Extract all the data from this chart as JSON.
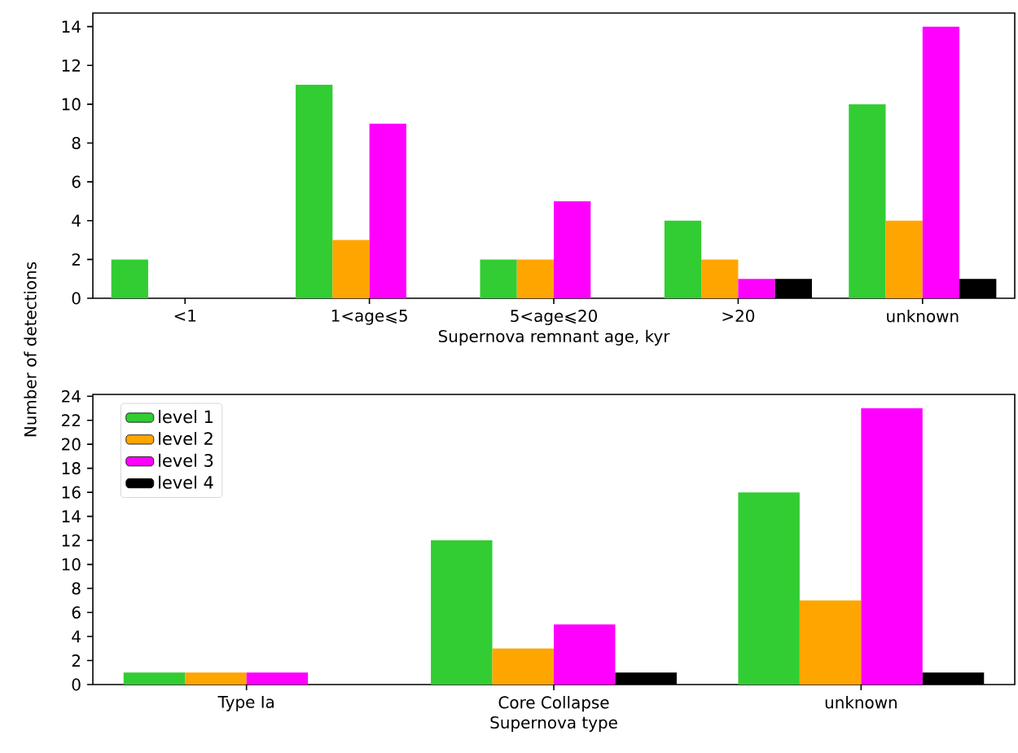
{
  "chart_data": [
    {
      "type": "bar",
      "xlabel": "Supernova remnant age, kyr",
      "ylabel": "Number of detections",
      "categories": [
        "<1",
        "1<age⩽5",
        "5<age⩽20",
        ">20",
        "unknown"
      ],
      "series": [
        {
          "color": "#32cd32",
          "values": [
            2,
            11,
            2,
            4,
            10
          ]
        },
        {
          "color": "#ffa500",
          "values": [
            0,
            3,
            2,
            2,
            4
          ]
        },
        {
          "color": "#ff00ff",
          "values": [
            0,
            9,
            5,
            1,
            14
          ]
        },
        {
          "color": "#000000",
          "values": [
            0,
            0,
            0,
            1,
            1
          ]
        }
      ],
      "ylim": [
        0,
        14.7
      ],
      "yticks": [
        0,
        2,
        4,
        6,
        8,
        10,
        12,
        14
      ],
      "grid": false,
      "legend": false
    },
    {
      "type": "bar",
      "xlabel": "Supernova type",
      "categories": [
        "Type Ia",
        "Core Collapse",
        "unknown"
      ],
      "series": [
        {
          "name": "level 1",
          "color": "#32cd32",
          "values": [
            1,
            12,
            16
          ]
        },
        {
          "name": "level 2",
          "color": "#ffa500",
          "values": [
            1,
            3,
            7
          ]
        },
        {
          "name": "level 3",
          "color": "#ff00ff",
          "values": [
            1,
            5,
            23
          ]
        },
        {
          "name": "level 4",
          "color": "#000000",
          "values": [
            0,
            1,
            1
          ]
        }
      ],
      "ylim": [
        0,
        24.15
      ],
      "yticks": [
        0,
        2,
        4,
        6,
        8,
        10,
        12,
        14,
        16,
        18,
        20,
        22,
        24
      ],
      "grid": false,
      "legend": "top left"
    }
  ]
}
